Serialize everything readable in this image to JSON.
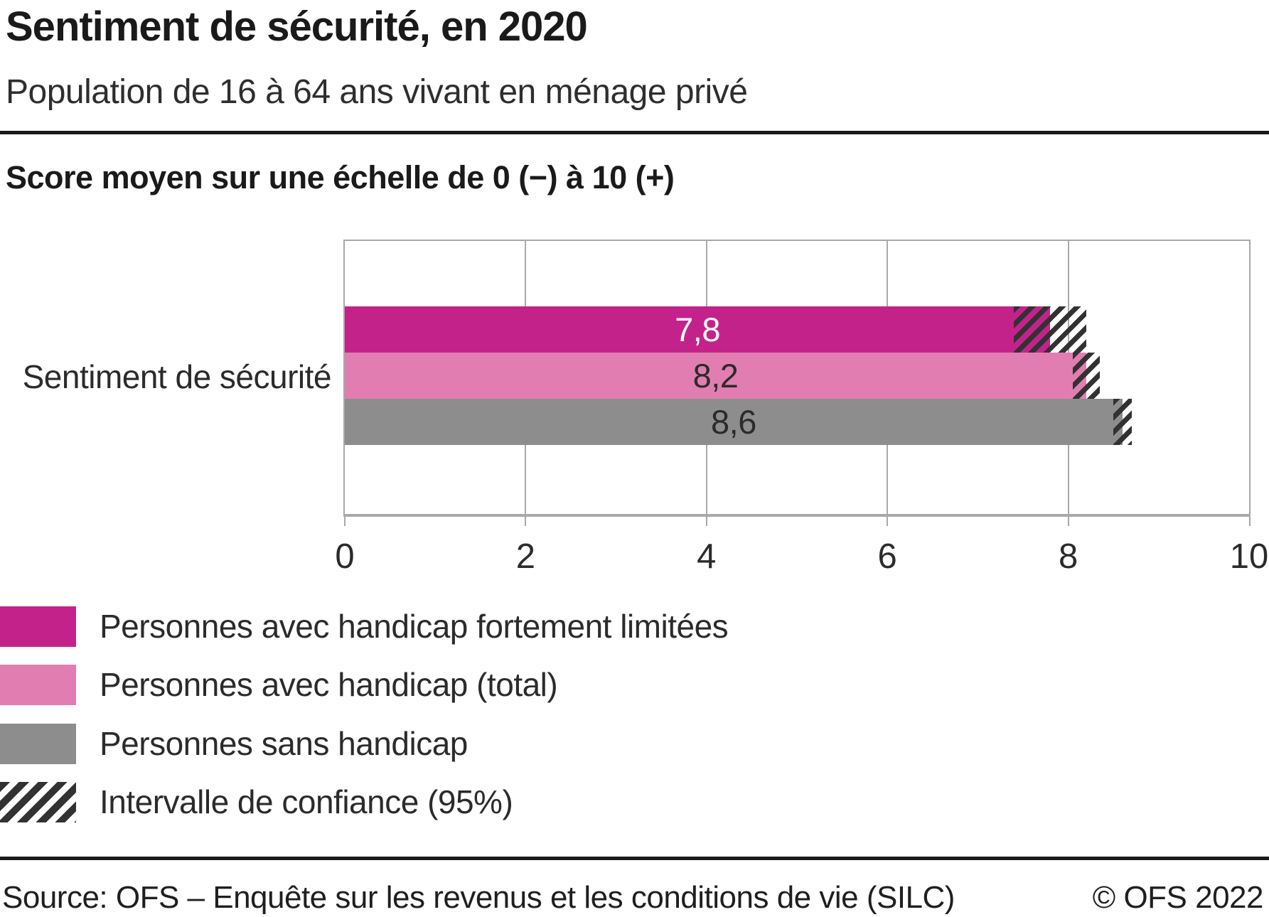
{
  "header": {
    "title": "Sentiment de sécurité, en 2020",
    "subtitle": "Population de 16 à 64 ans vivant en ménage privé"
  },
  "chart": {
    "axis_title": "Score moyen sur une échelle de 0 (−) à 10 (+)",
    "category_label": "Sentiment de sécurité"
  },
  "chart_data": {
    "type": "bar",
    "orientation": "horizontal",
    "title": "Sentiment de sécurité, en 2020",
    "categories": [
      "Sentiment de sécurité"
    ],
    "series": [
      {
        "name": "Personnes avec handicap fortement limitées",
        "values": [
          7.8
        ],
        "value_labels": [
          "7,8"
        ],
        "confidence_interval_95": [
          [
            7.4,
            8.2
          ]
        ],
        "color": "#c4228b",
        "value_label_color": "#ffffff"
      },
      {
        "name": "Personnes avec handicap (total)",
        "values": [
          8.2
        ],
        "value_labels": [
          "8,2"
        ],
        "confidence_interval_95": [
          [
            8.05,
            8.35
          ]
        ],
        "color": "#e27db2",
        "value_label_color": "#2b2b2b"
      },
      {
        "name": "Personnes sans handicap",
        "values": [
          8.6
        ],
        "value_labels": [
          "8,6"
        ],
        "confidence_interval_95": [
          [
            8.5,
            8.7
          ]
        ],
        "color": "#8d8d8d",
        "value_label_color": "#2b2b2b"
      }
    ],
    "xlabel": "Score moyen sur une échelle de 0 (−) à 10 (+)",
    "xlim": [
      0,
      10
    ],
    "ticks": [
      0,
      2,
      4,
      6,
      8,
      10
    ],
    "tick_labels": [
      "0",
      "2",
      "4",
      "6",
      "8",
      "10"
    ],
    "grid": "vertical",
    "legend_position": "bottom-left"
  },
  "legend": {
    "items": [
      {
        "label": "Personnes avec handicap fortement limitées",
        "swatch": "solid",
        "color": "#c4228b",
        "icon": "magenta-swatch"
      },
      {
        "label": "Personnes avec handicap (total)",
        "swatch": "solid",
        "color": "#e27db2",
        "icon": "pink-swatch"
      },
      {
        "label": "Personnes sans handicap",
        "swatch": "solid",
        "color": "#8d8d8d",
        "icon": "gray-swatch"
      },
      {
        "label": "Intervalle de confiance (95%)",
        "swatch": "hatch",
        "color": "#323232",
        "icon": "hatch-swatch"
      }
    ]
  },
  "footer": {
    "source": "Source: OFS – Enquête sur les revenus et les conditions de vie (SILC)",
    "copyright": "© OFS 2022"
  }
}
